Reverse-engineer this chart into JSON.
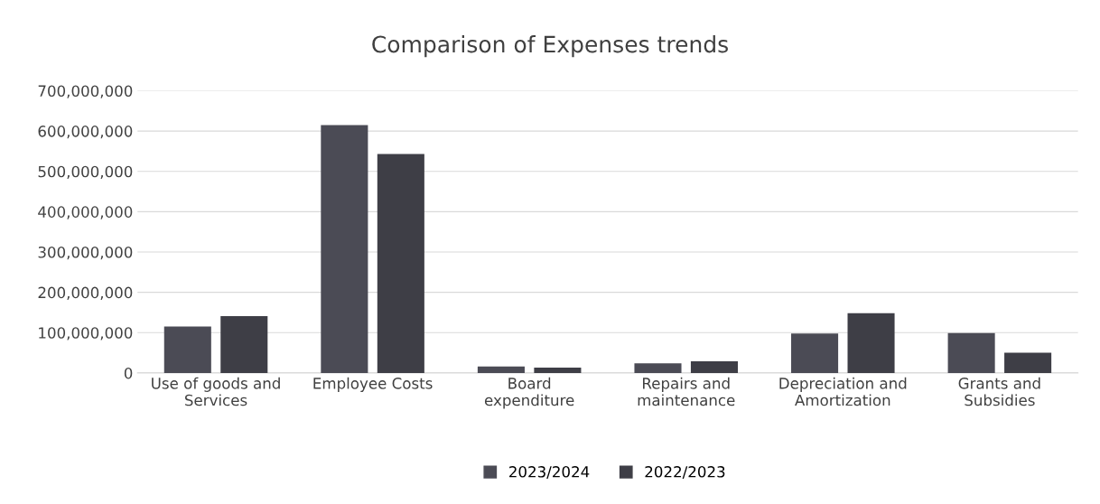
{
  "chart_data": {
    "type": "bar",
    "title": "Comparison of Expenses trends",
    "categories": [
      "Use of goods and\nServices",
      "Employee Costs",
      "Board\nexpenditure",
      "Repairs and\nmaintenance",
      "Depreciation and\nAmortization",
      "Grants and\nSubsidies"
    ],
    "series": [
      {
        "name": "2023/2024",
        "color": "#4b4b55",
        "values": [
          115000000,
          615000000,
          16000000,
          24000000,
          98000000,
          99000000
        ]
      },
      {
        "name": "2022/2023",
        "color": "#3e3e46",
        "values": [
          141000000,
          543000000,
          13000000,
          29000000,
          148000000,
          50000000
        ]
      }
    ],
    "ylim": [
      0,
      700000000
    ],
    "yticks": [
      {
        "value": 0,
        "label": "0"
      },
      {
        "value": 100000000,
        "label": "100,000,000"
      },
      {
        "value": 200000000,
        "label": "200,000,000"
      },
      {
        "value": 300000000,
        "label": "300,000,000"
      },
      {
        "value": 400000000,
        "label": "400,000,000"
      },
      {
        "value": 500000000,
        "label": "500,000,000"
      },
      {
        "value": 600000000,
        "label": "600,000,000"
      },
      {
        "value": 700000000,
        "label": "700,000,000"
      }
    ],
    "grid": "y",
    "legend": "bottom"
  }
}
